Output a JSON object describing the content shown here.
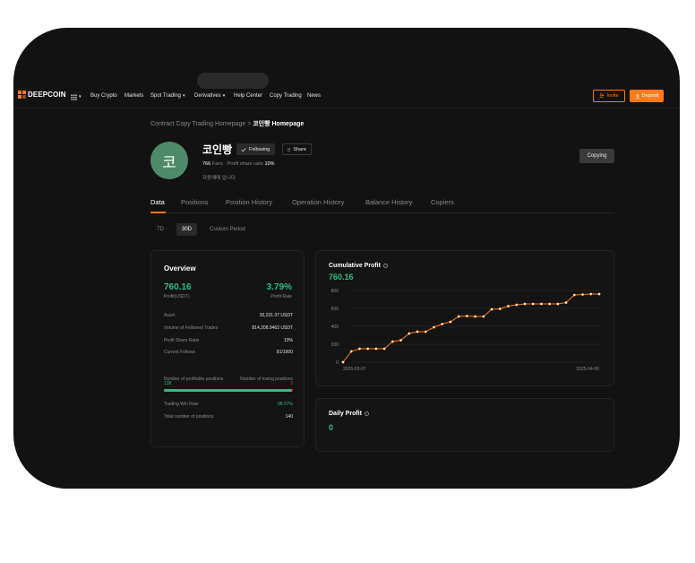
{
  "brand": {
    "name": "DEEPCOIN",
    "accent": "#ff7a1a",
    "green": "#2ebd85",
    "red": "#e0394d"
  },
  "nav": {
    "items": [
      {
        "label": "Buy Crypto",
        "dropdown": false
      },
      {
        "label": "Markets",
        "dropdown": false
      },
      {
        "label": "Spot Trading",
        "dropdown": true
      },
      {
        "label": "Derivatives",
        "dropdown": true
      },
      {
        "label": "Help Center",
        "dropdown": false
      },
      {
        "label": "Copy Trading",
        "dropdown": false
      },
      {
        "label": "News",
        "dropdown": false
      }
    ],
    "invite_label": "Invite",
    "deposit_label": "Deposit",
    "caret": "▾"
  },
  "breadcrumb": {
    "parent": "Contract Copy Trading Homepage",
    "separator": ">",
    "current": "코인빵 Homepage"
  },
  "profile": {
    "avatar_letter": "코",
    "name": "코인빵",
    "following_label": "Following",
    "share_label": "Share",
    "fans_value": "766",
    "fans_label": "Fans",
    "share_ratio_label": "Profit share ratio",
    "share_ratio_value": "10%",
    "description": "자동매매 입니다",
    "copying_label": "Copying"
  },
  "tabs": [
    "Data",
    "Positions",
    "Position History",
    "Operation History",
    "Balance History",
    "Copiers"
  ],
  "periods": [
    "7D",
    "30D",
    "Custom Period"
  ],
  "overview": {
    "title": "Overview",
    "profit_value": "760.16",
    "profit_label": "Profit(USDT)",
    "rate_value": "3.79%",
    "rate_label": "Profit Rate",
    "rows": [
      {
        "label": "Asset",
        "value": "20,231.37 USDT"
      },
      {
        "label": "Volume of Followed Trades",
        "value": "814,208.9462 USDT"
      },
      {
        "label": "Profit Share Ratio",
        "value": "10%"
      },
      {
        "label": "Current Follows",
        "value": "81/1000"
      }
    ],
    "profitable_label": "Number of profitable positions",
    "losing_label": "Number of losing positions",
    "profitable_count": "138",
    "losing_count": "2",
    "win_fraction": 0.9857,
    "win_rate_label": "Trading Win Rate",
    "win_rate_value": "98.57%",
    "total_label": "Total number of positions",
    "total_value": "140"
  },
  "cumulative": {
    "title": "Cumulative Profit",
    "value": "760.16"
  },
  "daily": {
    "title": "Daily Profit",
    "value": "0"
  },
  "chart_data": {
    "type": "line",
    "title": "Cumulative Profit",
    "x_tick_labels": [
      "2025-03-07",
      "2025-04-06"
    ],
    "y_ticks": [
      0,
      200,
      400,
      600,
      800
    ],
    "ylim": [
      0,
      800
    ],
    "grid": true,
    "line_color": "#ff7a1a",
    "series": [
      {
        "values": [
          0,
          120,
          150,
          150,
          150,
          150,
          230,
          245,
          320,
          340,
          340,
          390,
          425,
          450,
          510,
          515,
          510,
          510,
          590,
          595,
          625,
          640,
          650,
          650,
          650,
          650,
          650,
          665,
          750,
          755,
          760,
          760
        ]
      }
    ]
  }
}
